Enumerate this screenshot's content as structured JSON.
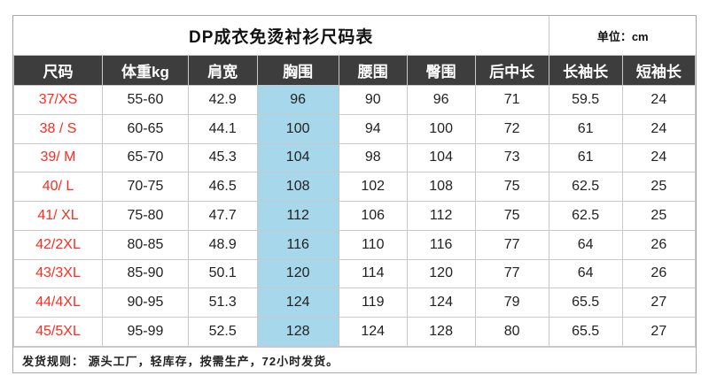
{
  "title": "DP成衣免烫衬衫尺码表",
  "unit": "单位：cm",
  "table": {
    "columns": [
      "尺码",
      "体重kg",
      "肩宽",
      "胸围",
      "腰围",
      "臀围",
      "后中长",
      "长袖长",
      "短袖长"
    ],
    "highlight_column": "胸围",
    "highlight_column_index": 3,
    "rows": [
      [
        "37/XS",
        "55-60",
        "42.9",
        "96",
        "90",
        "96",
        "71",
        "59.5",
        "24"
      ],
      [
        "38 / S",
        "60-65",
        "44.1",
        "100",
        "94",
        "100",
        "72",
        "61",
        "24"
      ],
      [
        "39/ M",
        "65-70",
        "45.3",
        "104",
        "98",
        "104",
        "73",
        "61",
        "24"
      ],
      [
        "40/ L",
        "70-75",
        "46.5",
        "108",
        "102",
        "108",
        "75",
        "62.5",
        "25"
      ],
      [
        "41/ XL",
        "75-80",
        "47.7",
        "112",
        "106",
        "112",
        "75",
        "62.5",
        "25"
      ],
      [
        "42/2XL",
        "80-85",
        "48.9",
        "116",
        "110",
        "116",
        "77",
        "64",
        "26"
      ],
      [
        "43/3XL",
        "85-90",
        "50.1",
        "120",
        "114",
        "120",
        "77",
        "64",
        "26"
      ],
      [
        "44/4XL",
        "90-95",
        "51.3",
        "124",
        "119",
        "124",
        "79",
        "65.5",
        "27"
      ],
      [
        "45/5XL",
        "95-99",
        "52.5",
        "128",
        "124",
        "128",
        "80",
        "65.5",
        "27"
      ]
    ]
  },
  "footer": "发货规则： 源头工厂，轻库存，按需生产，72小时发货。",
  "colors": {
    "header_bg": "#3d3d3d",
    "header_text": "#ffffff",
    "size_text": "#ff2b20",
    "chest_highlight_bg": "#a6d7ea",
    "border": "#c9c9c9"
  }
}
